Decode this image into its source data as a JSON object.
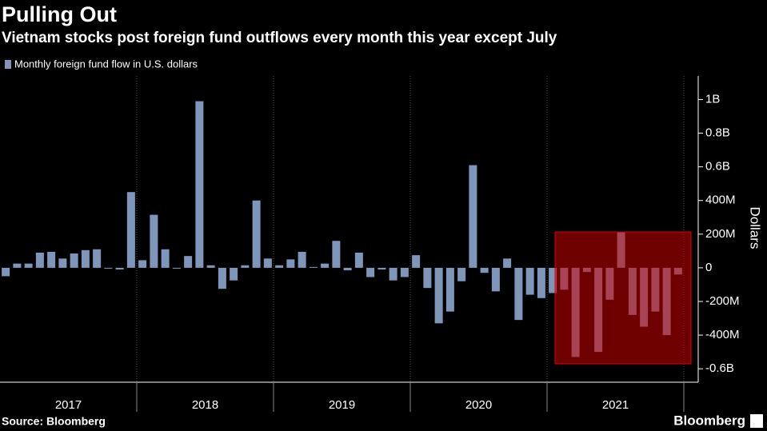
{
  "chart_data": {
    "type": "bar",
    "title": "Pulling Out",
    "subtitle": "Vietnam stocks post foreign fund outflows every month this year except July",
    "legend_label": "Monthly foreign fund flow in U.S. dollars",
    "y_axis_label": "Dollars",
    "source": "Source: Bloomberg",
    "brand": "Bloomberg",
    "color": "#7f96bb",
    "year_labels": [
      "2017",
      "2018",
      "2019",
      "2020",
      "2021"
    ],
    "values": [
      -50000000,
      25000000,
      25000000,
      90000000,
      95000000,
      55000000,
      85000000,
      105000000,
      110000000,
      -5000000,
      -10000000,
      450000000,
      45000000,
      315000000,
      110000000,
      -5000000,
      70000000,
      990000000,
      15000000,
      -125000000,
      -75000000,
      15000000,
      400000000,
      55000000,
      15000000,
      50000000,
      95000000,
      5000000,
      25000000,
      160000000,
      -15000000,
      90000000,
      -55000000,
      -10000000,
      -75000000,
      -55000000,
      75000000,
      -120000000,
      -330000000,
      -260000000,
      -80000000,
      610000000,
      -30000000,
      -140000000,
      55000000,
      -310000000,
      -160000000,
      -180000000,
      -150000000,
      -130000000,
      -530000000,
      -25000000,
      -500000000,
      -190000000,
      210000000,
      -280000000,
      -350000000,
      -260000000,
      -400000000,
      -40000000
    ],
    "ylim": [
      -680000000,
      1140000000
    ],
    "yticks": [
      {
        "value": 1000000000,
        "label": "1B"
      },
      {
        "value": 800000000,
        "label": "0.8B"
      },
      {
        "value": 600000000,
        "label": "0.6B"
      },
      {
        "value": 400000000,
        "label": "400M"
      },
      {
        "value": 200000000,
        "label": "200M"
      },
      0,
      {
        "value": -200000000,
        "label": "-200M"
      },
      {
        "value": -400000000,
        "label": "-400M"
      },
      {
        "value": -600000000,
        "label": "-0.6B"
      }
    ]
  }
}
